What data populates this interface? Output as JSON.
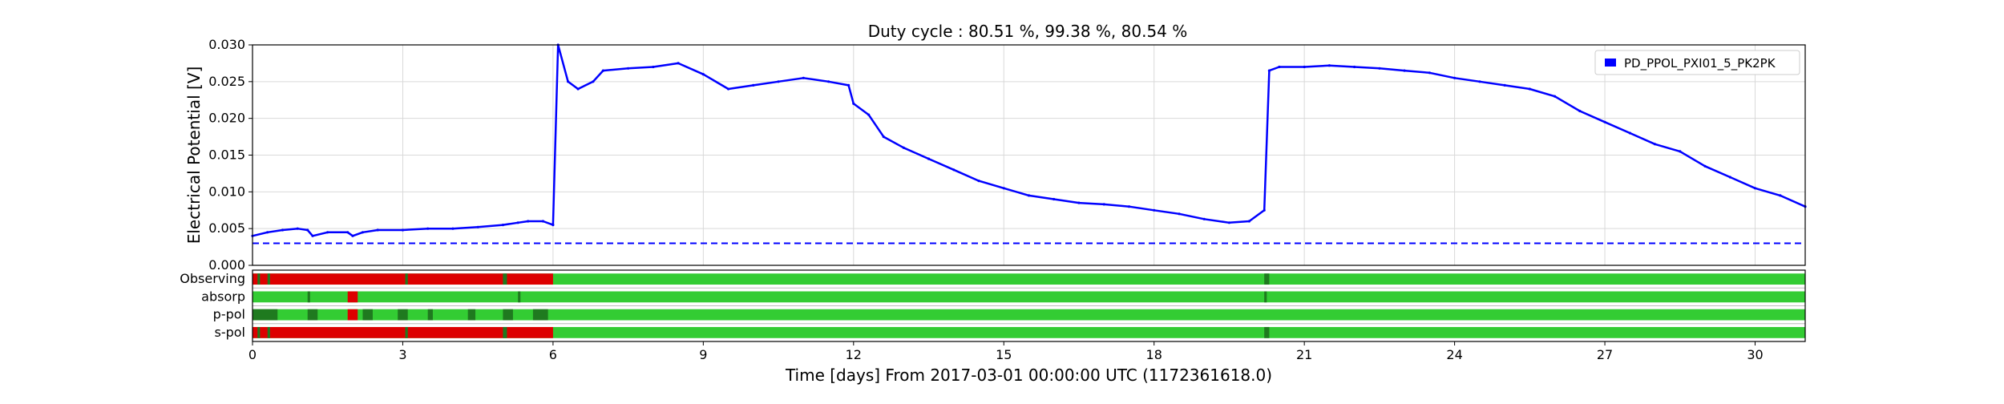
{
  "chart_data": {
    "type": "line",
    "title": "Duty cycle : 80.51 %, 99.38 %, 80.54 %",
    "xlabel": "Time [days] From 2017-03-01 00:00:00 UTC (1172361618.0)",
    "ylabel": "Electrical Potential [V]",
    "xlim": [
      0,
      31
    ],
    "ylim": [
      0,
      0.03
    ],
    "x_ticks": [
      "0",
      "3",
      "6",
      "9",
      "12",
      "15",
      "18",
      "21",
      "24",
      "27",
      "30"
    ],
    "y_ticks": [
      "0.000",
      "0.005",
      "0.010",
      "0.015",
      "0.020",
      "0.025",
      "0.030"
    ],
    "grid": true,
    "legend": "top-right",
    "threshold": {
      "value": 0.003,
      "style": "dashed",
      "color": "#0000ff"
    },
    "series": [
      {
        "name": "PD_PPOL_PXI01_5_PK2PK",
        "color": "#0000ff",
        "x": [
          0.0,
          0.3,
          0.6,
          0.9,
          1.1,
          1.2,
          1.5,
          1.9,
          2.0,
          2.2,
          2.5,
          3.0,
          3.5,
          4.0,
          4.5,
          5.0,
          5.3,
          5.5,
          5.8,
          6.0,
          6.1,
          6.3,
          6.5,
          6.8,
          7.0,
          7.5,
          8.0,
          8.5,
          9.0,
          9.5,
          10.0,
          10.5,
          11.0,
          11.5,
          11.9,
          12.0,
          12.3,
          12.6,
          13.0,
          13.5,
          14.0,
          14.5,
          15.0,
          15.5,
          16.0,
          16.5,
          17.0,
          17.5,
          18.0,
          18.5,
          19.0,
          19.5,
          19.9,
          20.2,
          20.3,
          20.5,
          21.0,
          21.5,
          22.0,
          22.5,
          23.0,
          23.5,
          24.0,
          24.5,
          25.0,
          25.5,
          26.0,
          26.5,
          27.0,
          27.5,
          28.0,
          28.5,
          29.0,
          29.5,
          30.0,
          30.5,
          31.0
        ],
        "y": [
          0.004,
          0.0045,
          0.0048,
          0.005,
          0.0048,
          0.004,
          0.0045,
          0.0045,
          0.004,
          0.0045,
          0.0048,
          0.0048,
          0.005,
          0.005,
          0.0052,
          0.0055,
          0.0058,
          0.006,
          0.006,
          0.0055,
          0.03,
          0.025,
          0.024,
          0.025,
          0.0265,
          0.0268,
          0.027,
          0.0275,
          0.026,
          0.024,
          0.0245,
          0.025,
          0.0255,
          0.025,
          0.0245,
          0.022,
          0.0205,
          0.0175,
          0.016,
          0.0145,
          0.013,
          0.0115,
          0.0105,
          0.0095,
          0.009,
          0.0085,
          0.0083,
          0.008,
          0.0075,
          0.007,
          0.0063,
          0.0058,
          0.006,
          0.0075,
          0.0265,
          0.027,
          0.027,
          0.0272,
          0.027,
          0.0268,
          0.0265,
          0.0262,
          0.0255,
          0.025,
          0.0245,
          0.024,
          0.023,
          0.021,
          0.0195,
          0.018,
          0.0165,
          0.0155,
          0.0135,
          0.012,
          0.0105,
          0.0095,
          0.008
        ]
      }
    ],
    "state_segments": [
      {
        "label": "Observing",
        "base_color": "#33cc33",
        "segments": [
          {
            "start": 0.0,
            "end": 6.0,
            "color": "#dd0000"
          },
          {
            "start": 0.1,
            "end": 0.15,
            "color": "#1f7a1f"
          },
          {
            "start": 0.3,
            "end": 0.35,
            "color": "#1f7a1f"
          },
          {
            "start": 3.05,
            "end": 3.1,
            "color": "#1f7a1f"
          },
          {
            "start": 5.0,
            "end": 5.08,
            "color": "#1f7a1f"
          },
          {
            "start": 20.2,
            "end": 20.3,
            "color": "#1f7a1f"
          }
        ]
      },
      {
        "label": "absorp",
        "base_color": "#33cc33",
        "segments": [
          {
            "start": 1.9,
            "end": 2.1,
            "color": "#dd0000"
          },
          {
            "start": 1.1,
            "end": 1.15,
            "color": "#1f7a1f"
          },
          {
            "start": 5.3,
            "end": 5.35,
            "color": "#1f7a1f"
          },
          {
            "start": 20.2,
            "end": 20.25,
            "color": "#1f7a1f"
          }
        ]
      },
      {
        "label": "p-pol",
        "base_color": "#33cc33",
        "segments": [
          {
            "start": 0.0,
            "end": 0.5,
            "color": "#1f7a1f"
          },
          {
            "start": 1.1,
            "end": 1.3,
            "color": "#1f7a1f"
          },
          {
            "start": 1.9,
            "end": 2.1,
            "color": "#dd0000"
          },
          {
            "start": 2.2,
            "end": 2.4,
            "color": "#1f7a1f"
          },
          {
            "start": 2.9,
            "end": 3.1,
            "color": "#1f7a1f"
          },
          {
            "start": 3.5,
            "end": 3.6,
            "color": "#1f7a1f"
          },
          {
            "start": 4.3,
            "end": 4.45,
            "color": "#1f7a1f"
          },
          {
            "start": 5.0,
            "end": 5.2,
            "color": "#1f7a1f"
          },
          {
            "start": 5.6,
            "end": 5.9,
            "color": "#1f7a1f"
          }
        ]
      },
      {
        "label": "s-pol",
        "base_color": "#33cc33",
        "segments": [
          {
            "start": 0.0,
            "end": 6.0,
            "color": "#dd0000"
          },
          {
            "start": 0.1,
            "end": 0.15,
            "color": "#1f7a1f"
          },
          {
            "start": 0.3,
            "end": 0.35,
            "color": "#1f7a1f"
          },
          {
            "start": 3.05,
            "end": 3.1,
            "color": "#1f7a1f"
          },
          {
            "start": 5.0,
            "end": 5.08,
            "color": "#1f7a1f"
          },
          {
            "start": 20.2,
            "end": 20.3,
            "color": "#1f7a1f"
          }
        ]
      }
    ]
  }
}
